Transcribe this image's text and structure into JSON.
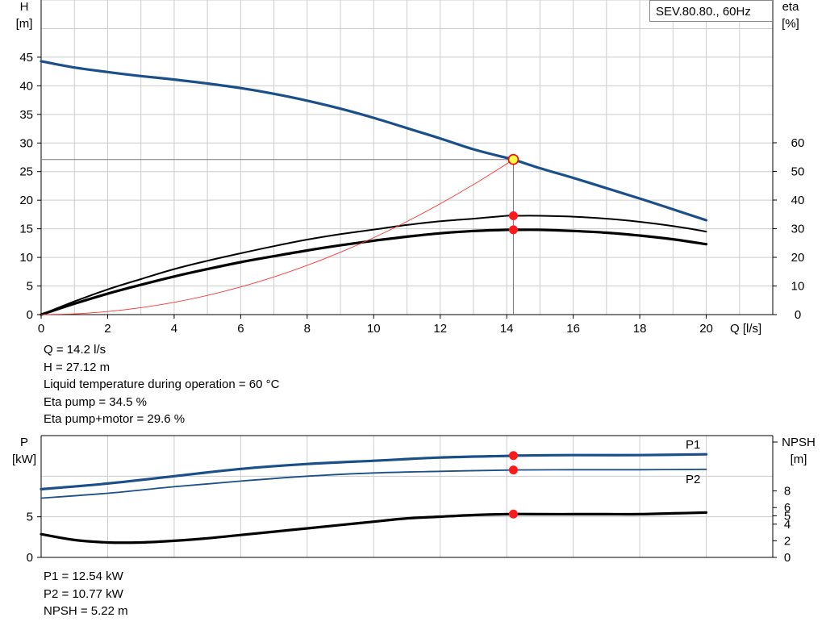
{
  "chart_data": [
    {
      "type": "line",
      "title": "SEV.80.80., 60Hz",
      "xlabel": "Q [l/s]",
      "ylabel_left": [
        "H",
        "[m]"
      ],
      "ylabel_right": [
        "eta",
        "[%]"
      ],
      "xlim": [
        0,
        22
      ],
      "ylim_left": [
        0,
        55
      ],
      "ylim_right": [
        0,
        60
      ],
      "x_ticks": [
        0,
        2,
        4,
        6,
        8,
        10,
        12,
        14,
        16,
        18,
        20
      ],
      "y_ticks_left": [
        0,
        5,
        10,
        15,
        20,
        25,
        30,
        35,
        40,
        45
      ],
      "y_ticks_right": [
        0,
        10,
        20,
        30,
        40,
        50,
        60
      ],
      "grid": true,
      "series": [
        {
          "name": "H",
          "axis": "left",
          "color": "#1b4f8a",
          "x": [
            0,
            1,
            2,
            3,
            4,
            5,
            6,
            7,
            8,
            9,
            10,
            11,
            12,
            13,
            14,
            14.2,
            15,
            16,
            17,
            18,
            19,
            20
          ],
          "y": [
            44.3,
            43.2,
            42.4,
            41.7,
            41.1,
            40.4,
            39.6,
            38.6,
            37.4,
            36.0,
            34.4,
            32.6,
            30.8,
            28.9,
            27.4,
            27.12,
            25.6,
            23.9,
            22.1,
            20.3,
            18.4,
            16.5
          ]
        },
        {
          "name": "Eta pump",
          "axis": "right",
          "color": "#000000",
          "x": [
            0,
            1,
            2,
            3,
            4,
            5,
            6,
            7,
            8,
            9,
            10,
            11,
            12,
            13,
            14,
            14.2,
            15,
            16,
            17,
            18,
            19,
            20
          ],
          "y": [
            0,
            4.6,
            8.8,
            12.4,
            15.9,
            18.8,
            21.4,
            23.9,
            26.2,
            28.1,
            29.7,
            31.3,
            32.6,
            33.5,
            34.5,
            34.5,
            34.5,
            34.2,
            33.5,
            32.4,
            30.9,
            29.0
          ]
        },
        {
          "name": "Eta pump+motor",
          "axis": "right",
          "color": "#000000",
          "x": [
            0,
            1,
            2,
            3,
            4,
            5,
            6,
            7,
            8,
            9,
            10,
            11,
            12,
            13,
            14,
            14.2,
            15,
            16,
            17,
            18,
            19,
            20
          ],
          "y": [
            0,
            3.8,
            7.3,
            10.4,
            13.3,
            15.9,
            18.3,
            20.4,
            22.4,
            24.2,
            25.8,
            27.2,
            28.4,
            29.2,
            29.6,
            29.6,
            29.6,
            29.2,
            28.6,
            27.6,
            26.3,
            24.6
          ]
        },
        {
          "name": "System curve",
          "axis": "left",
          "color": "#ff3333",
          "x": [
            0,
            1,
            2,
            3,
            4,
            5,
            6,
            7,
            8,
            9,
            10,
            11,
            12,
            13,
            14,
            14.2
          ],
          "y": [
            0,
            0.13,
            0.54,
            1.21,
            2.15,
            3.36,
            4.84,
            6.59,
            8.61,
            10.9,
            13.45,
            16.27,
            19.37,
            22.73,
            26.36,
            27.12
          ]
        }
      ],
      "operating_point": {
        "x": 14.2,
        "H": 27.12,
        "eta_pump": 34.5,
        "eta_pump_motor": 29.6
      }
    },
    {
      "type": "line",
      "xlim": [
        0,
        22
      ],
      "ylabel_left": [
        "P",
        "[kW]"
      ],
      "ylabel_right": [
        "NPSH",
        "[m]"
      ],
      "ylim_left": [
        0,
        15
      ],
      "ylim_right": [
        0,
        15
      ],
      "y_ticks_left": [
        0,
        5
      ],
      "y_ticks_right": [
        0,
        2,
        4,
        5,
        6,
        8
      ],
      "grid": true,
      "series": [
        {
          "name": "P1",
          "axis": "left",
          "color": "#1b4f8a",
          "x": [
            0,
            2,
            4,
            6,
            8,
            10,
            12,
            14,
            14.2,
            16,
            18,
            20
          ],
          "y": [
            8.4,
            9.1,
            10.0,
            10.9,
            11.5,
            11.9,
            12.3,
            12.5,
            12.54,
            12.6,
            12.6,
            12.7
          ]
        },
        {
          "name": "P2",
          "axis": "left",
          "color": "#1b4f8a",
          "x": [
            0,
            2,
            4,
            6,
            8,
            10,
            12,
            14,
            14.2,
            16,
            18,
            20
          ],
          "y": [
            7.3,
            7.9,
            8.7,
            9.4,
            10.0,
            10.4,
            10.6,
            10.75,
            10.77,
            10.8,
            10.8,
            10.85
          ]
        },
        {
          "name": "NPSH",
          "axis": "right",
          "color": "#000000",
          "x": [
            0,
            1,
            2,
            3,
            4,
            5,
            6,
            7,
            8,
            9,
            10,
            11,
            12,
            13,
            14,
            14.2,
            15,
            16,
            17,
            18,
            19,
            20
          ],
          "y": [
            2.8,
            2.1,
            1.8,
            1.8,
            2.0,
            2.3,
            2.7,
            3.1,
            3.5,
            3.9,
            4.3,
            4.7,
            4.9,
            5.1,
            5.2,
            5.22,
            5.2,
            5.2,
            5.2,
            5.2,
            5.3,
            5.4
          ]
        }
      ],
      "operating_point": {
        "x": 14.2,
        "P1": 12.54,
        "P2": 10.77,
        "NPSH": 5.22
      }
    }
  ],
  "top_info": [
    "Q = 14.2 l/s",
    "H = 27.12 m",
    "Liquid temperature during operation = 60 °C",
    "Eta pump = 34.5 %",
    "Eta pump+motor = 29.6 %"
  ],
  "bottom_info": [
    "P1 = 12.54 kW",
    "P2 = 10.77 kW",
    "NPSH = 5.22 m"
  ],
  "colors": {
    "grid": "#cccccc",
    "blue": "#1b4f8a",
    "marker": "#ff1a1a",
    "system": "#ff3333"
  }
}
